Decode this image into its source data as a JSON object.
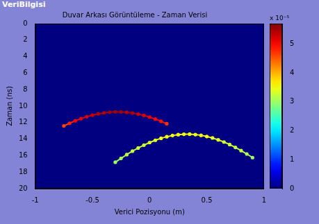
{
  "panel_title": "VeriBilgisi",
  "chart_data": {
    "type": "scatter",
    "title": "Duvar Arkası Görüntüleme - Zaman Verisi",
    "x_label": "Verici Pozisyonu (m)",
    "y_label": "Zaman (ns)",
    "xlim": [
      -1,
      1
    ],
    "xticks": [
      -1,
      -0.5,
      0,
      0.5,
      1
    ],
    "ylim": [
      20,
      0
    ],
    "yticks": [
      0,
      2,
      4,
      6,
      8,
      10,
      12,
      14,
      16,
      18,
      20
    ],
    "grid": false,
    "series": [
      {
        "marker": "circle",
        "line_style": "solid",
        "x": [
          -0.75,
          -0.7,
          -0.65,
          -0.6,
          -0.55,
          -0.5,
          -0.45,
          -0.4,
          -0.35,
          -0.3,
          -0.25,
          -0.2,
          -0.15,
          -0.1,
          -0.05,
          0,
          0.05,
          0.1,
          0.15
        ],
        "values": [
          12.4,
          12.08,
          11.78,
          11.52,
          11.29,
          11.1,
          10.94,
          10.82,
          10.74,
          10.7,
          10.71,
          10.75,
          10.84,
          10.97,
          11.13,
          11.33,
          11.57,
          11.84,
          12.14
        ],
        "intensity": [
          4.6,
          4.8,
          5.0,
          5.1,
          5.2,
          5.3,
          5.4,
          5.4,
          5.5,
          5.5,
          5.5,
          5.4,
          5.4,
          5.3,
          5.2,
          5.1,
          5.0,
          4.9,
          4.7
        ]
      },
      {
        "marker": "circle",
        "line_style": "solid",
        "x": [
          -0.3,
          -0.25,
          -0.2,
          -0.15,
          -0.1,
          -0.05,
          0,
          0.05,
          0.1,
          0.15,
          0.2,
          0.25,
          0.3,
          0.35,
          0.4,
          0.45,
          0.5,
          0.55,
          0.6,
          0.65,
          0.7,
          0.75,
          0.8,
          0.85,
          0.9
        ],
        "values": [
          16.8,
          16.33,
          15.88,
          15.46,
          15.08,
          14.73,
          14.41,
          14.14,
          13.9,
          13.71,
          13.56,
          13.46,
          13.41,
          13.4,
          13.45,
          13.54,
          13.68,
          13.86,
          14.09,
          14.35,
          14.66,
          15.01,
          15.39,
          15.8,
          16.24
        ],
        "intensity": [
          3.0,
          3.1,
          3.2,
          3.2,
          3.3,
          3.3,
          3.4,
          3.4,
          3.5,
          3.5,
          3.5,
          3.5,
          3.5,
          3.5,
          3.5,
          3.5,
          3.5,
          3.4,
          3.4,
          3.3,
          3.3,
          3.2,
          3.2,
          3.1,
          3.0
        ]
      }
    ],
    "colorbar": {
      "range": [
        0,
        5.7
      ],
      "ticks": [
        0,
        1,
        2,
        3,
        4,
        5
      ],
      "multiplier": "x 10⁻⁵"
    }
  }
}
